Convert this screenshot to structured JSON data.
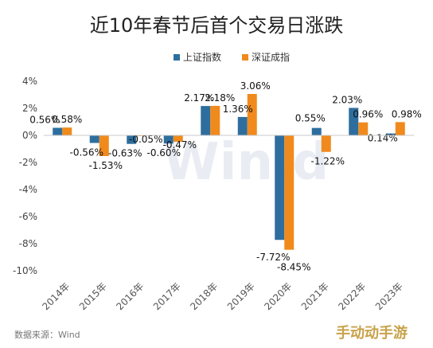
{
  "chart_data": {
    "type": "bar",
    "title": "近10年春节后首个交易日涨跌",
    "categories": [
      "2014年",
      "2015年",
      "2016年",
      "2017年",
      "2018年",
      "2019年",
      "2020年",
      "2021年",
      "2022年",
      "2023年"
    ],
    "series": [
      {
        "name": "上证指数",
        "color": "#2e6e9e",
        "values": [
          0.56,
          -0.56,
          -0.63,
          -0.6,
          2.17,
          1.36,
          -7.72,
          0.55,
          2.03,
          0.14
        ],
        "labels": [
          "0.56%",
          "-0.56%",
          "-0.63%",
          "-0.60%",
          "2.17%",
          "1.36%",
          "-7.72%",
          "0.55%",
          "2.03%",
          "0.14%"
        ]
      },
      {
        "name": "深证成指",
        "color": "#f08a1c",
        "values": [
          0.58,
          -1.53,
          -0.05,
          -0.47,
          2.18,
          3.06,
          -8.45,
          -1.22,
          0.96,
          0.98
        ],
        "labels": [
          "0.58%",
          "-1.53%",
          "-0.05%",
          "-0.47%",
          "2.18%",
          "3.06%",
          "-8.45%",
          "-1.22%",
          "0.96%",
          "0.98%"
        ]
      }
    ],
    "ylim": [
      -10,
      4
    ],
    "yticks": [
      4,
      2,
      0,
      -2,
      -4,
      -6,
      -8,
      -10
    ],
    "ytick_labels": [
      "4%",
      "2%",
      "0%",
      "-2%",
      "-4%",
      "-6%",
      "-8%",
      "-10%"
    ],
    "legend": "top-right",
    "grid": false
  },
  "source": "数据来源：Wind",
  "watermark": "Win.d",
  "corner_watermark": "手动动手游"
}
